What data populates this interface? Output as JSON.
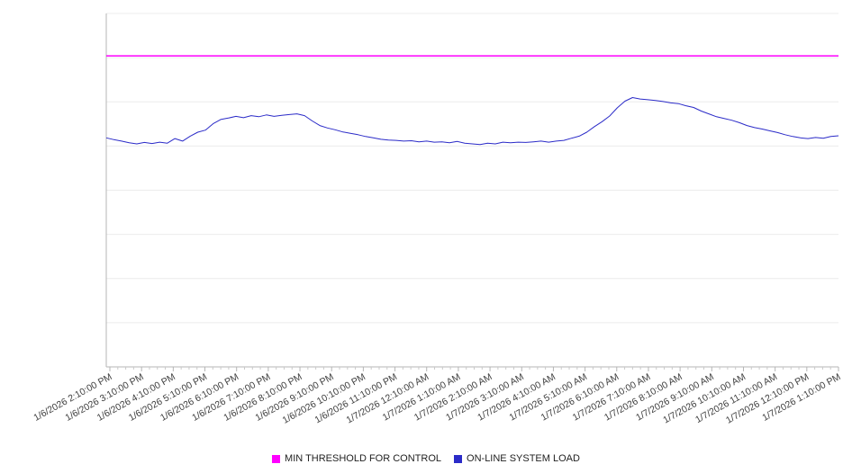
{
  "chart_data": {
    "type": "line",
    "title": "",
    "xlabel": "",
    "ylabel": "",
    "ylim": [
      0,
      100
    ],
    "grid_rows": 8,
    "grid_on": true,
    "legend_position": "bottom",
    "x_tick_labels": [
      "1/6/2026 2:10:00 PM",
      "1/6/2026 3:10:00 PM",
      "1/6/2026 4:10:00 PM",
      "1/6/2026 5:10:00 PM",
      "1/6/2026 6:10:00 PM",
      "1/6/2026 7:10:00 PM",
      "1/6/2026 8:10:00 PM",
      "1/6/2026 9:10:00 PM",
      "1/6/2026 10:10:00 PM",
      "1/6/2026 11:10:00 PM",
      "1/7/2026 12:10:00 AM",
      "1/7/2026 1:10:00 AM",
      "1/7/2026 2:10:00 AM",
      "1/7/2026 3:10:00 AM",
      "1/7/2026 4:10:00 AM",
      "1/7/2026 5:10:00 AM",
      "1/7/2026 6:10:00 AM",
      "1/7/2026 7:10:00 AM",
      "1/7/2026 8:10:00 AM",
      "1/7/2026 9:10:00 AM",
      "1/7/2026 10:10:00 AM",
      "1/7/2026 11:10:00 AM",
      "1/7/2026 12:10:00 PM",
      "1/7/2026 1:10:00 PM"
    ],
    "points_per_hour": 4,
    "series": [
      {
        "name": "MIN THRESHOLD FOR CONTROL",
        "color": "#ff00ff",
        "style": "constant",
        "value": 88
      },
      {
        "name": "ON-LINE SYSTEM LOAD",
        "color": "#2b2bc8",
        "style": "line",
        "values": [
          64.8,
          64.3,
          63.9,
          63.4,
          63.1,
          63.5,
          63.2,
          63.6,
          63.3,
          64.6,
          63.9,
          65.3,
          66.4,
          67.0,
          68.8,
          70.0,
          70.4,
          70.9,
          70.5,
          71.1,
          70.8,
          71.3,
          70.9,
          71.2,
          71.4,
          71.6,
          71.1,
          69.6,
          68.3,
          67.6,
          67.1,
          66.5,
          66.1,
          65.7,
          65.2,
          64.8,
          64.4,
          64.2,
          64.1,
          63.9,
          64.0,
          63.7,
          63.9,
          63.6,
          63.7,
          63.4,
          63.8,
          63.3,
          63.1,
          62.9,
          63.3,
          63.1,
          63.6,
          63.4,
          63.6,
          63.5,
          63.7,
          63.9,
          63.6,
          63.9,
          64.1,
          64.7,
          65.3,
          66.4,
          68.0,
          69.4,
          71.0,
          73.3,
          75.2,
          76.2,
          75.8,
          75.6,
          75.4,
          75.1,
          74.7,
          74.5,
          73.9,
          73.4,
          72.4,
          71.6,
          70.8,
          70.3,
          69.8,
          69.1,
          68.3,
          67.7,
          67.3,
          66.8,
          66.3,
          65.7,
          65.2,
          64.8,
          64.6,
          64.9,
          64.7,
          65.2,
          65.4
        ]
      }
    ],
    "style_colors": {
      "gridline": "#ececec",
      "axis": "#b5b5b5",
      "minor_tick": "#c9c9c9",
      "tick_label": "#3c3c3c"
    }
  }
}
